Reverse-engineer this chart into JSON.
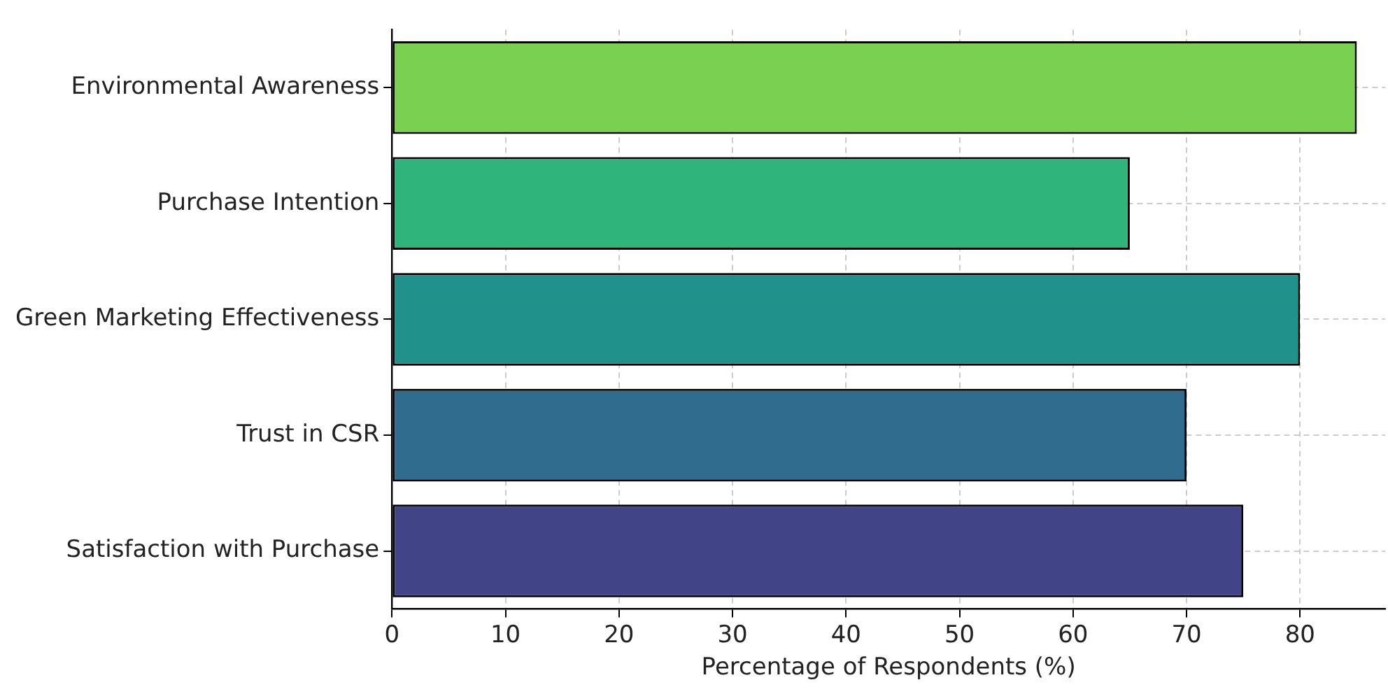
{
  "chart_data": {
    "type": "bar",
    "orientation": "horizontal",
    "xlabel": "Percentage of Respondents (%)",
    "categories": [
      "Environmental Awareness",
      "Purchase Intention",
      "Green Marketing Effectiveness",
      "Trust in CSR",
      "Satisfaction with Purchase"
    ],
    "values": [
      85,
      65,
      80,
      70,
      75
    ],
    "colors": [
      "#7ad151",
      "#2fb47c",
      "#21918c",
      "#2f6c8e",
      "#414487"
    ],
    "xlim": [
      0,
      87.5
    ],
    "xticks": [
      0,
      10,
      20,
      30,
      40,
      50,
      60,
      70,
      80
    ],
    "grid": true,
    "legend": false
  }
}
